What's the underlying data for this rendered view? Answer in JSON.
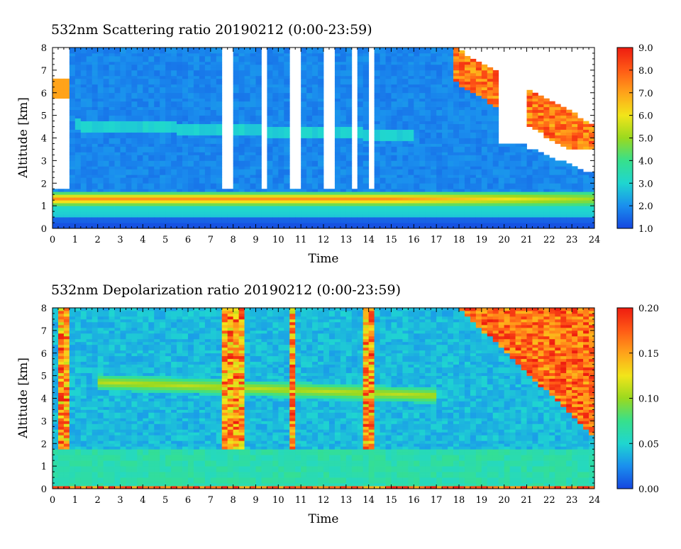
{
  "chart_data": [
    {
      "type": "heatmap",
      "title": "532nm Scattering ratio  20190212 (0:00-23:59)",
      "xlabel": "Time",
      "ylabel": "Altitude [km]",
      "xlim": [
        0,
        24
      ],
      "ylim": [
        0,
        8
      ],
      "x_ticks": [
        "0",
        "1",
        "2",
        "3",
        "4",
        "5",
        "6",
        "7",
        "8",
        "9",
        "10",
        "11",
        "12",
        "13",
        "14",
        "15",
        "16",
        "17",
        "18",
        "19",
        "20",
        "21",
        "22",
        "23",
        "24"
      ],
      "y_ticks": [
        "0",
        "1",
        "2",
        "3",
        "4",
        "5",
        "6",
        "7",
        "8"
      ],
      "colorbar": {
        "min": 1.0,
        "max": 9.0,
        "ticks": [
          "1.0",
          "2.0",
          "3.0",
          "4.0",
          "5.0",
          "6.0",
          "7.0",
          "8.0",
          "9.0"
        ],
        "colors": [
          "#1546e0",
          "#1a8fee",
          "#1fd6d0",
          "#37e08c",
          "#9ad91f",
          "#f2e51a",
          "#ffa31a",
          "#ff5a16",
          "#ee1c10"
        ]
      },
      "features": {
        "cloud_layer_km": [
          1.0,
          1.7
        ],
        "aerosol_layer_km": [
          4.3,
          4.8
        ],
        "no_data_gaps_h": [
          [
            7.6,
            7.9
          ],
          [
            9.2,
            9.6
          ],
          [
            10.6,
            11.0
          ],
          [
            12.1,
            12.4
          ],
          [
            13.3,
            13.6
          ],
          [
            14.0,
            14.3
          ]
        ],
        "high_cloud_start_h": 17.8
      }
    },
    {
      "type": "heatmap",
      "title": "532nm Depolarization ratio  20190212 (0:00-23:59)",
      "xlabel": "Time",
      "ylabel": "Altitude [km]",
      "xlim": [
        0,
        24
      ],
      "ylim": [
        0,
        8
      ],
      "x_ticks": [
        "0",
        "1",
        "2",
        "3",
        "4",
        "5",
        "6",
        "7",
        "8",
        "9",
        "10",
        "11",
        "12",
        "13",
        "14",
        "15",
        "16",
        "17",
        "18",
        "19",
        "20",
        "21",
        "22",
        "23",
        "24"
      ],
      "y_ticks": [
        "0",
        "1",
        "2",
        "3",
        "4",
        "5",
        "6",
        "7",
        "8"
      ],
      "colorbar": {
        "min": 0.0,
        "max": 0.2,
        "ticks": [
          "0.00",
          "0.05",
          "0.10",
          "0.15",
          "0.20"
        ],
        "colors": [
          "#1546e0",
          "#1a8fee",
          "#1fd6d0",
          "#37e08c",
          "#9ad91f",
          "#f2e51a",
          "#ffa31a",
          "#ff5a16",
          "#ee1c10"
        ]
      },
      "features": {
        "dust_layer_km": [
          4.2,
          5.0
        ],
        "ice_cloud_onset_h": 18.0,
        "high_depol_columns_h": [
          0.5,
          7.8,
          8.3,
          10.6,
          14.0
        ]
      }
    }
  ]
}
